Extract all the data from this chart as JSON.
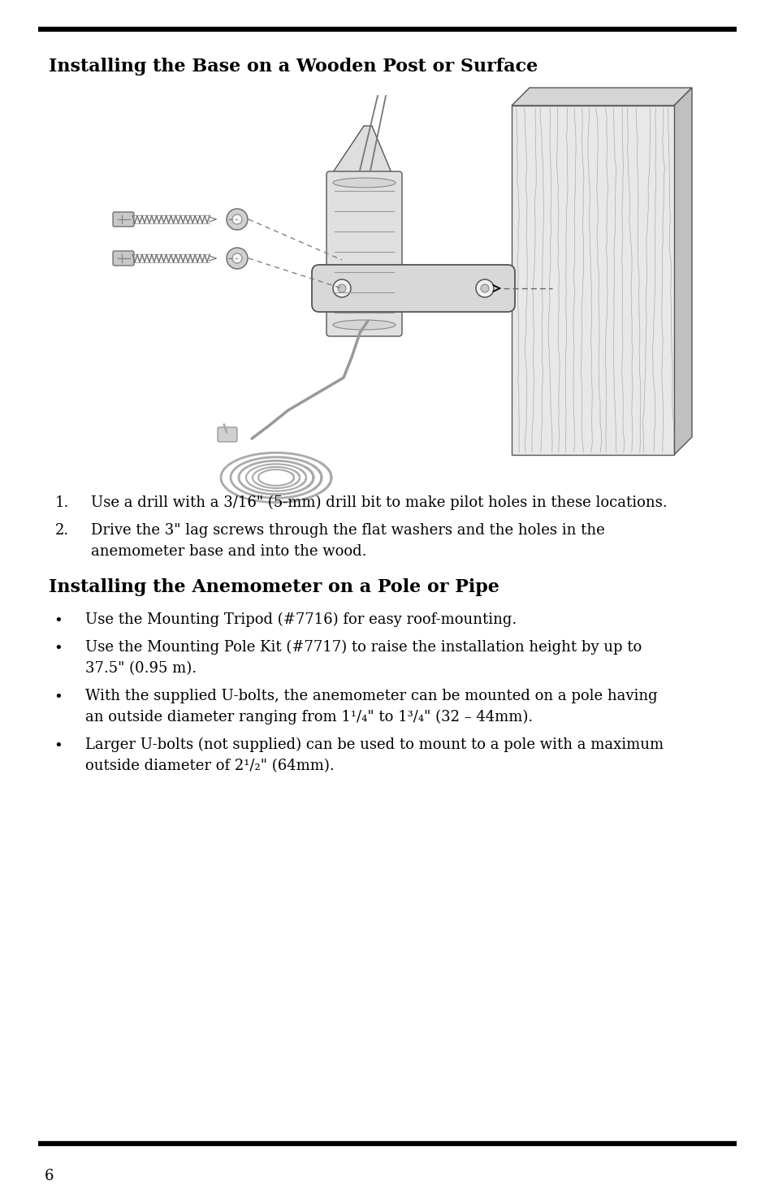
{
  "title1": "Installing the Base on a Wooden Post or Surface",
  "title2": "Installing the Anemometer on a Pole or Pipe",
  "numbered_items": [
    {
      "num": "1.",
      "line1": "Use a drill with a 3/16\" (5-mm) drill bit to make pilot holes in these locations.",
      "line2": ""
    },
    {
      "num": "2.",
      "line1": "Drive the 3\" lag screws through the flat washers and the holes in the",
      "line2": "anemometer base and into the wood."
    }
  ],
  "bullet_items": [
    {
      "line1": "Use the Mounting Tripod (#7716) for easy roof-mounting.",
      "line2": ""
    },
    {
      "line1": "Use the Mounting Pole Kit (#7717) to raise the installation height by up to",
      "line2": "37.5\" (0.95 m)."
    },
    {
      "line1": "With the supplied U-bolts, the anemometer can be mounted on a pole having",
      "line2": "an outside diameter ranging from 1¹/₄\" to 1³/₄\" (32 – 44mm)."
    },
    {
      "line1": "Larger U-bolts (not supplied) can be used to mount to a pole with a maximum",
      "line2": "outside diameter of 2¹/₂\" (64mm)."
    }
  ],
  "page_number": "6",
  "bg_color": "#ffffff",
  "text_color": "#000000"
}
